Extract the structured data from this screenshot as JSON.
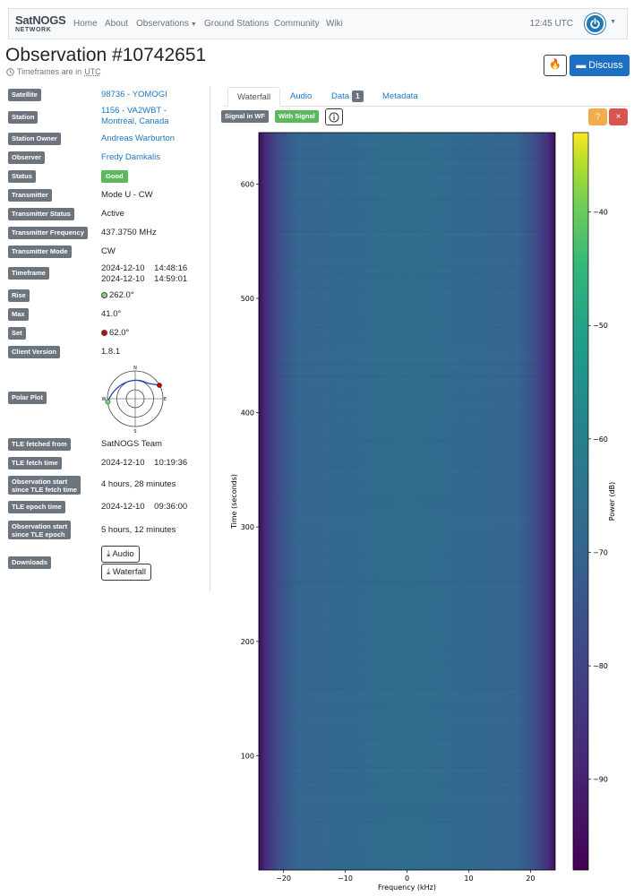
{
  "navbar": {
    "logo_line1": "SatNOGS",
    "logo_line2": "NETWORK",
    "items": [
      {
        "label": "Home",
        "dropdown": false
      },
      {
        "label": "About",
        "dropdown": false
      },
      {
        "label": "Observations",
        "dropdown": true
      },
      {
        "label": "Ground Stations",
        "dropdown": false
      },
      {
        "label": "Community",
        "dropdown": false
      },
      {
        "label": "Wiki",
        "dropdown": false
      }
    ],
    "time": "12:45 UTC",
    "user_icon": "power-icon"
  },
  "header": {
    "title": "Observation #10742651",
    "timeframe_prefix": "Timeframes are in",
    "timeframe_unit": "UTC",
    "discuss_label": "Discuss"
  },
  "details": {
    "satellite_label": "Satellite",
    "satellite": "98736 - YOMOGI",
    "station_label": "Station",
    "station_line1": "1156 - VA2WBT -",
    "station_line2": "Montréal, Canada",
    "owner_label": "Station Owner",
    "owner": "Andreas Warburton",
    "observer_label": "Observer",
    "observer": "Fredy Damkalis",
    "status_label": "Status",
    "status": "Good",
    "transmitter_label": "Transmitter",
    "transmitter": "Mode U - CW",
    "transmitter_status_label": "Transmitter Status",
    "transmitter_status": "Active",
    "transmitter_frequency_label": "Transmitter Frequency",
    "transmitter_frequency": "437.3750 MHz",
    "transmitter_mode_label": "Transmitter Mode",
    "transmitter_mode": "CW",
    "timeframe_label": "Timeframe",
    "timeframe_start_date": "2024-12-10",
    "timeframe_start_time": "14:48:16",
    "timeframe_end_date": "2024-12-10",
    "timeframe_end_time": "14:59:01",
    "rise_label": "Rise",
    "rise": "262.0°",
    "max_label": "Max",
    "max": "41.0°",
    "set_label": "Set",
    "set": "62.0°",
    "client_version_label": "Client Version",
    "client_version": "1.8.1",
    "polar_plot_label": "Polar Plot",
    "polar_n": "N",
    "polar_e": "E",
    "polar_s": "S",
    "polar_w": "W",
    "tle_from_label": "TLE fetched from",
    "tle_from": "SatNOGS Team",
    "tle_fetch_time_label": "TLE fetch time",
    "tle_fetch_date": "2024-12-10",
    "tle_fetch_time": "10:19:36",
    "obs_since_fetch_label_1": "Observation start",
    "obs_since_fetch_label_2": "since TLE fetch time",
    "obs_since_fetch": "4 hours, 28 minutes",
    "tle_epoch_label": "TLE epoch time",
    "tle_epoch_date": "2024-12-10",
    "tle_epoch_time": "09:36:00",
    "obs_since_epoch_label_1": "Observation start",
    "obs_since_epoch_label_2": "since TLE epoch",
    "obs_since_epoch": "5 hours, 12 minutes",
    "downloads_label": "Downloads",
    "download_audio": "Audio",
    "download_waterfall": "Waterfall"
  },
  "tabs": {
    "waterfall": "Waterfall",
    "audio": "Audio",
    "data": "Data",
    "data_count": "1",
    "metadata": "Metadata",
    "active": "waterfall"
  },
  "vetting": {
    "signal_in_wf": "Signal in WF",
    "with_signal": "With Signal",
    "signal_in_wf_color": "#6c757d",
    "with_signal_color": "#5cb85c"
  },
  "chart_data": {
    "type": "heatmap",
    "xlabel": "Frequency (kHz)",
    "ylabel": "Time (seconds)",
    "colorbar_label": "Power (dB)",
    "xlim": [
      -24,
      24
    ],
    "ylim": [
      0,
      645
    ],
    "xticks": [
      -20,
      -10,
      0,
      10,
      20
    ],
    "yticks": [
      100,
      200,
      300,
      400,
      500,
      600
    ],
    "colorbar_range": [
      -98,
      -33
    ],
    "colorbar_ticks": [
      -40,
      -50,
      -60,
      -70,
      -80,
      -90
    ],
    "colormap": "viridis"
  }
}
